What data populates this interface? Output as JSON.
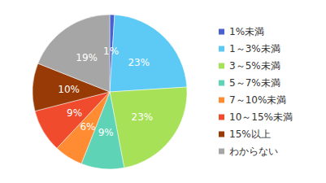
{
  "chart_data": {
    "type": "pie",
    "categories": [
      "1%未満",
      "1～3%未満",
      "3～5%未満",
      "5～7%未満",
      "7～10%未満",
      "10～15%未満",
      "15%以上",
      "わからない"
    ],
    "values": [
      1,
      23,
      23,
      9,
      6,
      9,
      10,
      19
    ],
    "value_labels": [
      "1%",
      "23%",
      "23%",
      "9%",
      "6%",
      "9%",
      "10%",
      "19%"
    ],
    "colors": [
      "#4a5fd0",
      "#5ccaf4",
      "#a6e157",
      "#5ed3b5",
      "#ff8c33",
      "#f04b2c",
      "#973a05",
      "#a6a6a6"
    ],
    "data_labels": true,
    "legend": "right"
  }
}
